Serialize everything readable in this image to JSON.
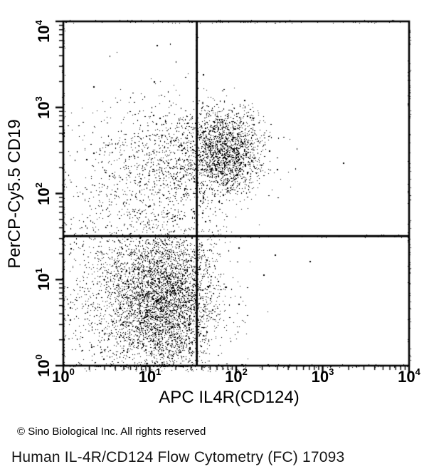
{
  "figure": {
    "copyright": "© Sino Biological Inc. All rights reserved",
    "caption": "Human IL-4R/CD124 Flow Cytometry (FC) 17093"
  },
  "chart_data": {
    "type": "scatter",
    "subtype": "flow-cytometry-dot-plot",
    "xlabel": "APC IL4R(CD124)",
    "ylabel": "PerCP-Cy5.5 CD19",
    "x_scale": "log10",
    "y_scale": "log10",
    "x_range": [
      1,
      10000
    ],
    "y_range": [
      1,
      10000
    ],
    "tick_base": "10",
    "x_tick_exponents": [
      0,
      1,
      2,
      3,
      4
    ],
    "y_tick_exponents": [
      0,
      1,
      2,
      3,
      4
    ],
    "grid": false,
    "marker_color": "#000000",
    "background": "#ffffff",
    "quadrant_gates": {
      "x_value": 35,
      "y_value": 32
    },
    "populations": [
      {
        "name": "CD19- IL4R- lymphocytes (dense lower-left)",
        "center_log10": [
          1.18,
          0.76
        ],
        "sigma_log10": [
          0.3,
          0.44
        ],
        "count": 3800
      },
      {
        "name": "lower-left diffuse debris tail",
        "center_log10": [
          0.6,
          0.85
        ],
        "sigma_log10": [
          0.4,
          0.55
        ],
        "count": 1000
      },
      {
        "name": "CD19+ IL4R+ B cells (upper cluster at gate)",
        "center_log10": [
          1.88,
          2.5
        ],
        "sigma_log10": [
          0.205,
          0.235
        ],
        "count": 1500
      },
      {
        "name": "CD19+ IL4R dim spread",
        "center_log10": [
          1.42,
          2.39
        ],
        "sigma_log10": [
          0.42,
          0.32
        ],
        "count": 1000
      },
      {
        "name": "CD19+ far-left sparse fringe",
        "center_log10": [
          0.78,
          2.25
        ],
        "sigma_log10": [
          0.45,
          0.48
        ],
        "count": 420
      }
    ],
    "outlier_points_log10": [
      [
        3.24,
        2.35
      ],
      [
        2.48,
        2.28
      ],
      [
        2.45,
        1.28
      ],
      [
        2.86,
        1.21
      ],
      [
        2.32,
        1.05
      ],
      [
        2.1,
        3.08
      ],
      [
        1.62,
        3.38
      ],
      [
        1.05,
        3.3
      ]
    ]
  }
}
